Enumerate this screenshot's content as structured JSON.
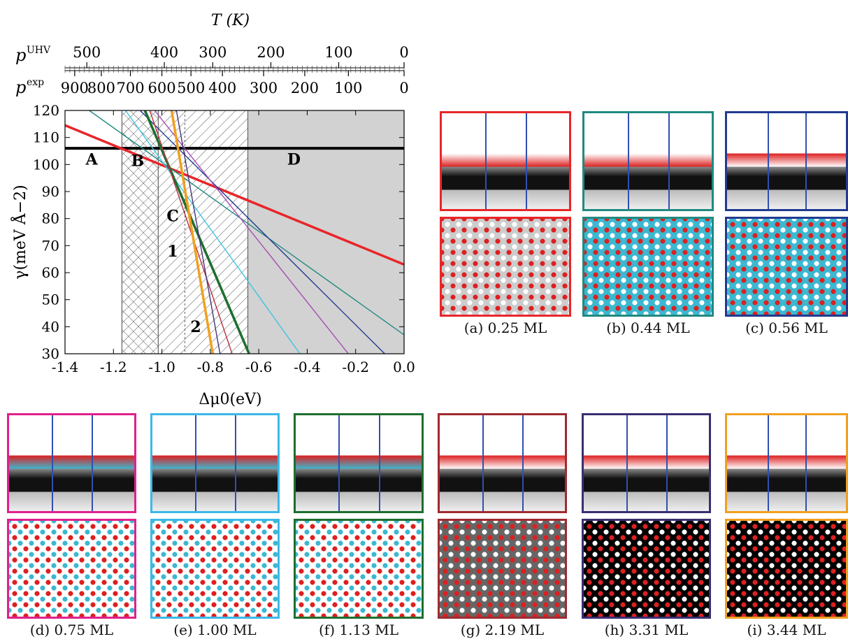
{
  "chart_data": {
    "type": "line",
    "xlabel": "Δμ0(eV)",
    "ylabel": "γ(meV Å−2)",
    "xlim": [
      -1.4,
      0.0
    ],
    "ylim": [
      30,
      120
    ],
    "x_ticks": [
      "-1.4",
      "-1.2",
      "-1.0",
      "-0.8",
      "-0.6",
      "-0.4",
      "-0.2",
      "0.0"
    ],
    "y_ticks": [
      "30",
      "40",
      "50",
      "60",
      "70",
      "80",
      "90",
      "100",
      "110",
      "120"
    ],
    "top_axis_title": "T (K)",
    "top_axis_label_uhv": "p",
    "top_axis_label_uhv_sup": "UHV",
    "top_axis_label_exp": "p",
    "top_axis_label_exp_sup": "exp",
    "top_ticks_uhv": [
      {
        "label": "500",
        "x": -1.31
      },
      {
        "label": "400",
        "x": -0.99
      },
      {
        "label": "300",
        "x": -0.79
      },
      {
        "label": "200",
        "x": -0.55
      },
      {
        "label": "100",
        "x": -0.27
      },
      {
        "label": "0",
        "x": 0.0
      }
    ],
    "top_ticks_exp": [
      {
        "label": "900",
        "x": -1.36
      },
      {
        "label": "800",
        "x": -1.25
      },
      {
        "label": "700",
        "x": -1.13
      },
      {
        "label": "600",
        "x": -1.0
      },
      {
        "label": "500",
        "x": -0.88
      },
      {
        "label": "400",
        "x": -0.75
      },
      {
        "label": "300",
        "x": -0.58
      },
      {
        "label": "200",
        "x": -0.41
      },
      {
        "label": "100",
        "x": -0.23
      },
      {
        "label": "0",
        "x": 0.0
      }
    ],
    "regions": [
      {
        "label": "A",
        "x_range": [
          -1.4,
          -1.165
        ],
        "fill": "none",
        "label_pos": [
          -1.29,
          100
        ]
      },
      {
        "label": "B",
        "x_range": [
          -1.165,
          -1.015
        ],
        "fill": "crosshatch",
        "label_pos": [
          -1.1,
          99.5
        ]
      },
      {
        "label": "C",
        "x_range": [
          -1.015,
          -0.645
        ],
        "fill": "hatch",
        "label_pos": [
          -0.955,
          79
        ]
      },
      {
        "label": "D",
        "x_range": [
          -0.645,
          0.0
        ],
        "fill": "gray",
        "label_pos": [
          -0.455,
          100
        ]
      }
    ],
    "annotations": [
      {
        "text": "1",
        "x": -0.955,
        "y": 66
      },
      {
        "text": "2",
        "x": -0.86,
        "y": 38
      }
    ],
    "reference_vline": -0.905,
    "series": [
      {
        "color": "#000000",
        "width": 4,
        "points": [
          [
            -1.4,
            106
          ],
          [
            0.0,
            106
          ]
        ]
      },
      {
        "color": "#e8262a",
        "width": 3.5,
        "points": [
          [
            -1.4,
            114.5
          ],
          [
            0.0,
            63
          ]
        ]
      },
      {
        "color": "#1f8a80",
        "width": 1.4,
        "points": [
          [
            -1.3,
            120
          ],
          [
            0.0,
            37
          ]
        ]
      },
      {
        "color": "#3cc6e0",
        "width": 1.4,
        "points": [
          [
            -1.15,
            120
          ],
          [
            -0.43,
            30
          ]
        ]
      },
      {
        "color": "#213a8f",
        "width": 1.4,
        "points": [
          [
            -1.09,
            120
          ],
          [
            -0.08,
            30
          ]
        ]
      },
      {
        "color": "#a44cb0",
        "width": 1.4,
        "points": [
          [
            -1.03,
            120
          ],
          [
            -0.23,
            30
          ]
        ]
      },
      {
        "color": "#1e6e2e",
        "width": 3.5,
        "points": [
          [
            -1.07,
            120
          ],
          [
            -0.64,
            30
          ]
        ]
      },
      {
        "color": "#b83040",
        "width": 1.4,
        "points": [
          [
            -1.05,
            120
          ],
          [
            -0.71,
            30
          ]
        ]
      },
      {
        "color": "#44347a",
        "width": 1.4,
        "points": [
          [
            -0.94,
            120
          ],
          [
            -0.76,
            30
          ]
        ]
      },
      {
        "color": "#f0a020",
        "width": 3.5,
        "points": [
          [
            -0.96,
            120
          ],
          [
            -0.79,
            30
          ]
        ]
      }
    ]
  },
  "panels": [
    {
      "caption": "(a) 0.25 ML",
      "border": "#e8262a"
    },
    {
      "caption": "(b) 0.44 ML",
      "border": "#1f8a80"
    },
    {
      "caption": "(c) 0.56 ML",
      "border": "#213a8f"
    },
    {
      "caption": "(d) 0.75 ML",
      "border": "#e0208c"
    },
    {
      "caption": "(e) 1.00 ML",
      "border": "#3cb8e8"
    },
    {
      "caption": "(f) 1.13 ML",
      "border": "#1e6e2e"
    },
    {
      "caption": "(g) 2.19 ML",
      "border": "#a02a30"
    },
    {
      "caption": "(h) 3.31 ML",
      "border": "#3a2e70"
    },
    {
      "caption": "(i) 3.44 ML",
      "border": "#f0a020"
    }
  ]
}
